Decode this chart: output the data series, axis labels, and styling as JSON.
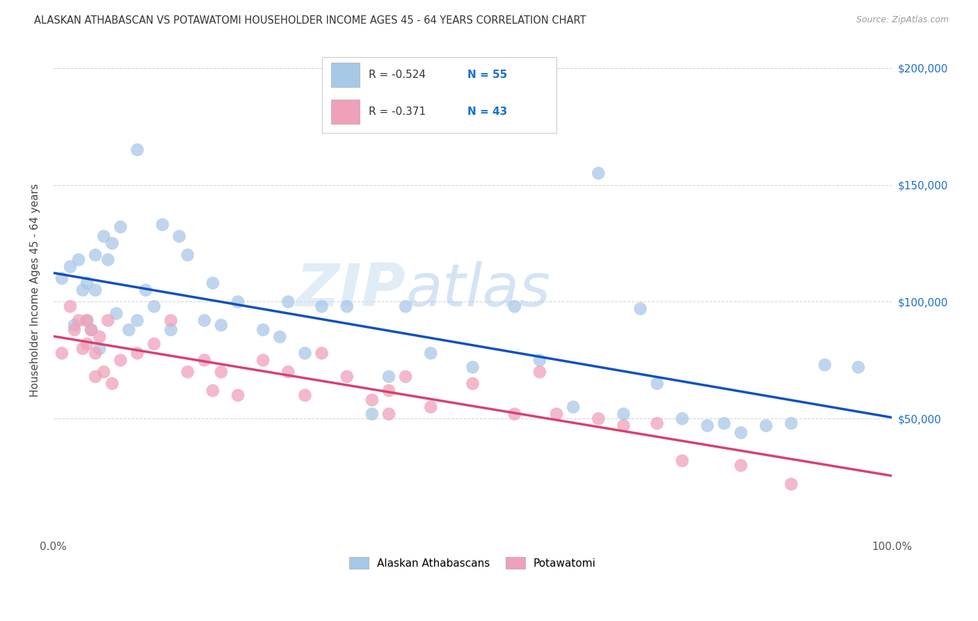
{
  "title": "ALASKAN ATHABASCAN VS POTAWATOMI HOUSEHOLDER INCOME AGES 45 - 64 YEARS CORRELATION CHART",
  "source": "Source: ZipAtlas.com",
  "ylabel": "Householder Income Ages 45 - 64 years",
  "xlim": [
    0,
    1.0
  ],
  "ylim": [
    0,
    210000
  ],
  "ytick_labels": [
    "$50,000",
    "$100,000",
    "$150,000",
    "$200,000"
  ],
  "ytick_values": [
    50000,
    100000,
    150000,
    200000
  ],
  "legend_labels": [
    "Alaskan Athabascans",
    "Potawatomi"
  ],
  "blue_R": "R = -0.524",
  "blue_N": "N = 55",
  "pink_R": "R = -0.371",
  "pink_N": "N = 43",
  "blue_color": "#A8C8E8",
  "pink_color": "#F0A0B8",
  "blue_line_color": "#1050C0",
  "pink_line_color": "#D84070",
  "watermark_zip": "ZIP",
  "watermark_atlas": "atlas",
  "background_color": "#FFFFFF",
  "blue_scatter_x": [
    0.01,
    0.02,
    0.025,
    0.03,
    0.035,
    0.04,
    0.04,
    0.045,
    0.05,
    0.05,
    0.055,
    0.06,
    0.065,
    0.07,
    0.075,
    0.08,
    0.09,
    0.1,
    0.1,
    0.11,
    0.12,
    0.13,
    0.14,
    0.15,
    0.16,
    0.18,
    0.19,
    0.2,
    0.22,
    0.25,
    0.27,
    0.28,
    0.3,
    0.32,
    0.35,
    0.38,
    0.4,
    0.42,
    0.45,
    0.5,
    0.55,
    0.58,
    0.62,
    0.65,
    0.68,
    0.7,
    0.72,
    0.75,
    0.78,
    0.8,
    0.82,
    0.85,
    0.88,
    0.92,
    0.96
  ],
  "blue_scatter_y": [
    110000,
    115000,
    90000,
    118000,
    105000,
    108000,
    92000,
    88000,
    120000,
    105000,
    80000,
    128000,
    118000,
    125000,
    95000,
    132000,
    88000,
    165000,
    92000,
    105000,
    98000,
    133000,
    88000,
    128000,
    120000,
    92000,
    108000,
    90000,
    100000,
    88000,
    85000,
    100000,
    78000,
    98000,
    98000,
    52000,
    68000,
    98000,
    78000,
    72000,
    98000,
    75000,
    55000,
    155000,
    52000,
    97000,
    65000,
    50000,
    47000,
    48000,
    44000,
    47000,
    48000,
    73000,
    72000
  ],
  "pink_scatter_x": [
    0.01,
    0.02,
    0.025,
    0.03,
    0.035,
    0.04,
    0.04,
    0.045,
    0.05,
    0.05,
    0.055,
    0.06,
    0.065,
    0.07,
    0.08,
    0.1,
    0.12,
    0.14,
    0.16,
    0.18,
    0.19,
    0.2,
    0.22,
    0.25,
    0.28,
    0.3,
    0.32,
    0.35,
    0.38,
    0.4,
    0.42,
    0.45,
    0.5,
    0.55,
    0.58,
    0.6,
    0.65,
    0.68,
    0.72,
    0.75,
    0.82,
    0.88,
    0.4
  ],
  "pink_scatter_y": [
    78000,
    98000,
    88000,
    92000,
    80000,
    92000,
    82000,
    88000,
    78000,
    68000,
    85000,
    70000,
    92000,
    65000,
    75000,
    78000,
    82000,
    92000,
    70000,
    75000,
    62000,
    70000,
    60000,
    75000,
    70000,
    60000,
    78000,
    68000,
    58000,
    52000,
    68000,
    55000,
    65000,
    52000,
    70000,
    52000,
    50000,
    47000,
    48000,
    32000,
    30000,
    22000,
    62000
  ]
}
